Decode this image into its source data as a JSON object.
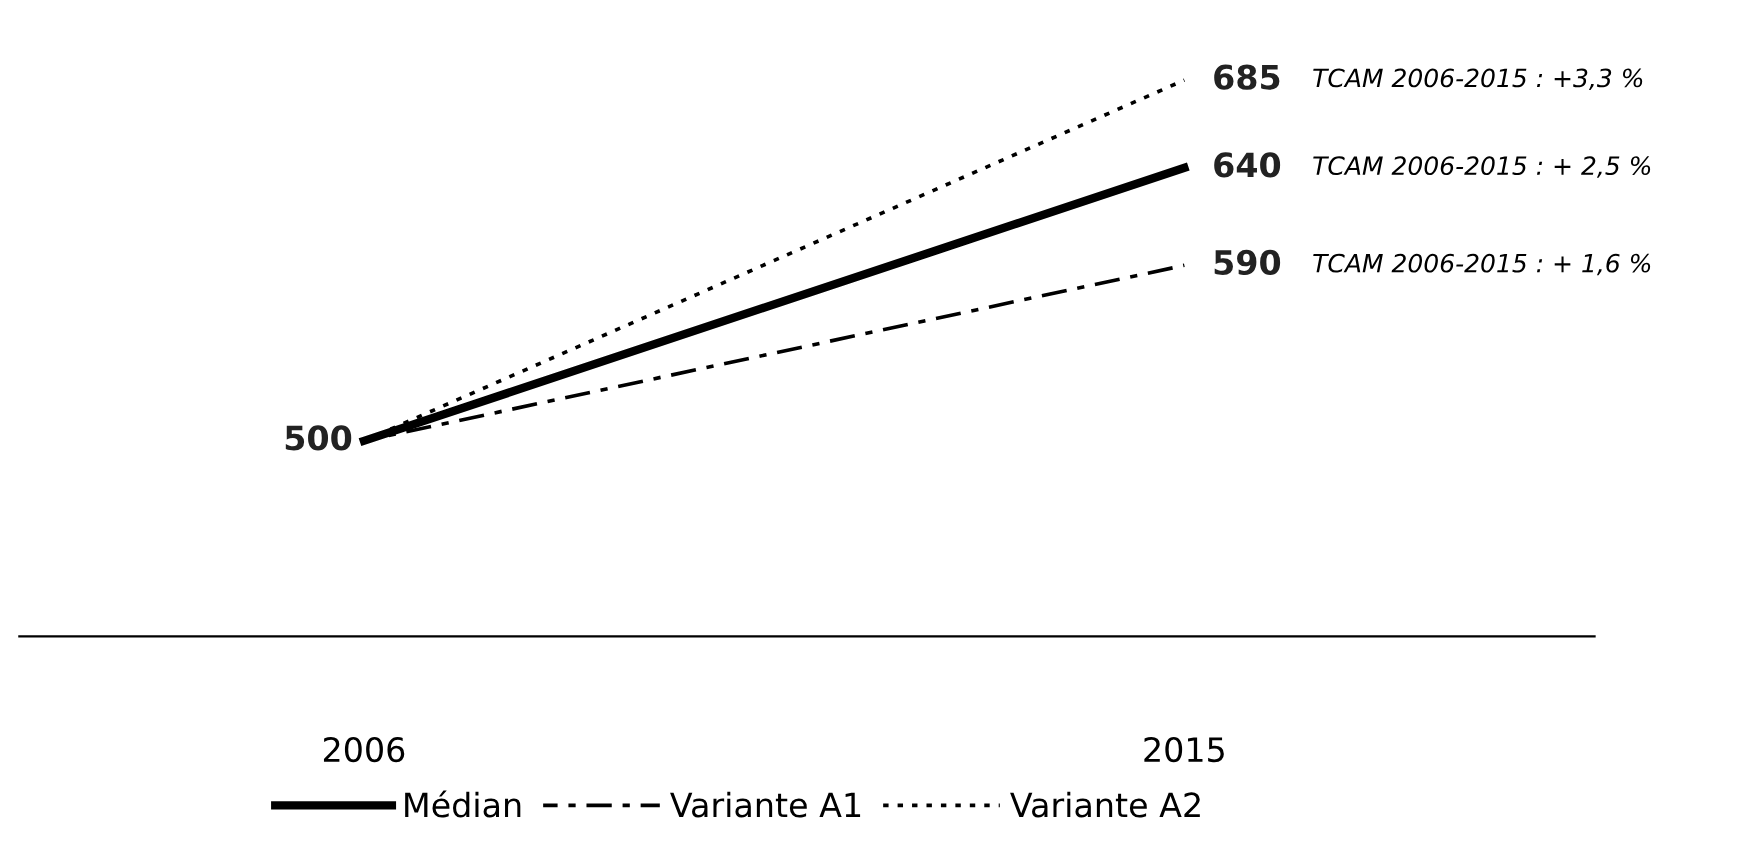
{
  "chart_data": {
    "type": "line",
    "categories": [
      "2006",
      "2015"
    ],
    "series": [
      {
        "name": "Médian",
        "color": "#000000",
        "line_style": "solid",
        "values": [
          500,
          640
        ],
        "value_labels": [
          "500",
          "640"
        ]
      },
      {
        "name": "Variante A1",
        "color": "#000000",
        "line_style": "dashdot",
        "values": [
          500,
          590
        ],
        "value_labels": [
          null,
          "590"
        ]
      },
      {
        "name": "Variante A2",
        "color": "#000000",
        "line_style": "dotted",
        "values": [
          500,
          685
        ],
        "value_labels": [
          null,
          "685"
        ]
      }
    ],
    "tick_labels": "x",
    "legend": "bottom",
    "grid": false,
    "marker": "none",
    "annotations": [
      "TCAM 2006-2015 : +3,3 %",
      "TCAM 2006-2015 : + 2,5 %",
      "TCAM 2006-2015 : + 1,6 %"
    ]
  }
}
